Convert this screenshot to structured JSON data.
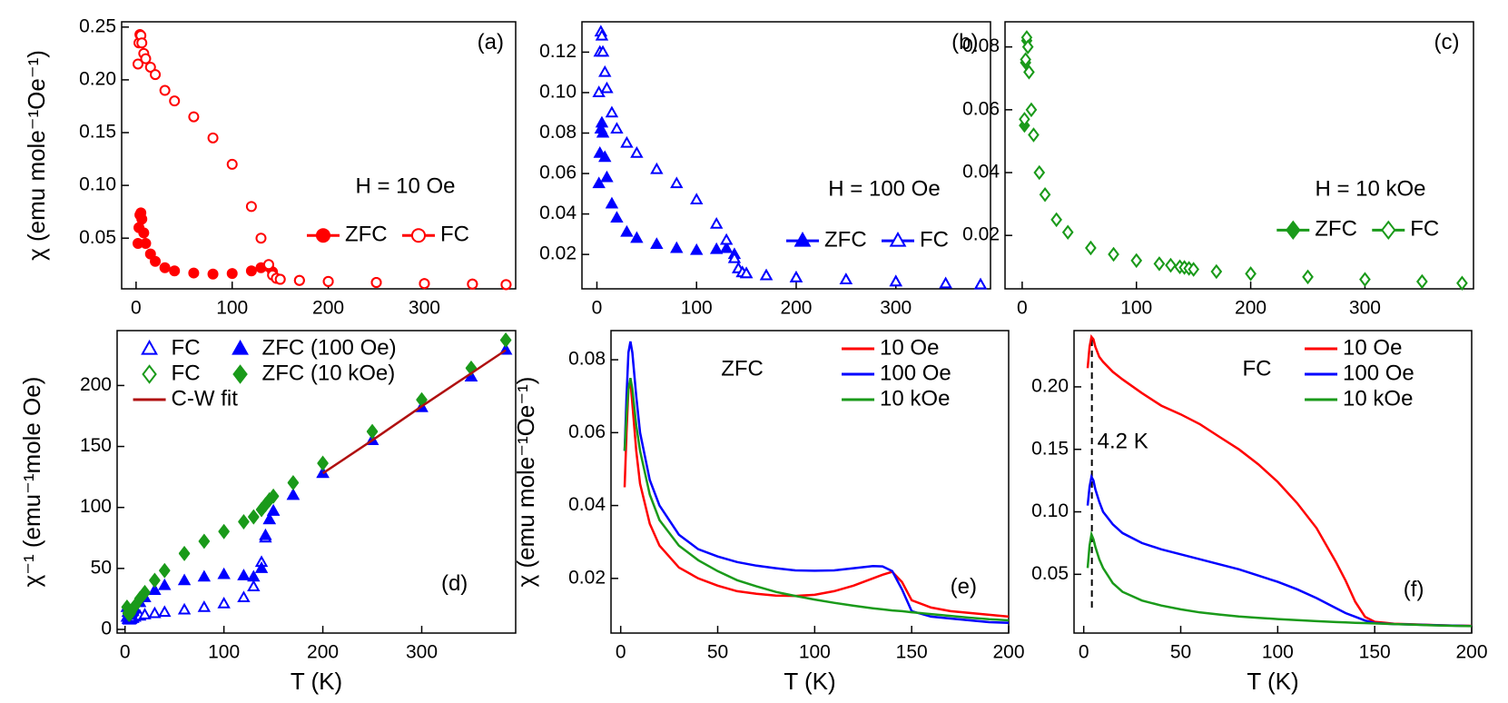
{
  "chart_data": [
    {
      "type": "scatter",
      "panel_label": "(a)",
      "annotation": "H = 10 Oe",
      "ylabel": "χ (emu mole⁻¹Oe⁻¹)",
      "legend": "lower-right",
      "legend_ncol": 2,
      "x": [
        2,
        3,
        4,
        5,
        6,
        8,
        10,
        15,
        20,
        30,
        40,
        60,
        80,
        100,
        120,
        130,
        138,
        142,
        146,
        150,
        170,
        200,
        250,
        300,
        350,
        385
      ],
      "xlim": [
        -15,
        395
      ],
      "xticks": [
        0,
        100,
        200,
        300
      ],
      "ylim": [
        0.002,
        0.255
      ],
      "yticks": [
        0.05,
        {
          "value": 0.1,
          "label": "0.10"
        },
        0.15,
        {
          "value": 0.2,
          "label": "0.20"
        },
        0.25
      ],
      "series": [
        {
          "name": "ZFC",
          "color": "#ff0000",
          "marker": "circle",
          "filled": true,
          "values": [
            0.045,
            0.06,
            0.072,
            0.074,
            0.068,
            0.055,
            0.045,
            0.035,
            0.028,
            0.022,
            0.019,
            0.017,
            0.016,
            0.0165,
            0.019,
            0.022,
            0.023,
            0.018,
            0.012,
            0.011,
            0.01,
            0.009,
            0.008,
            0.007,
            0.0065,
            0.006
          ]
        },
        {
          "name": "FC",
          "color": "#ff0000",
          "marker": "circle",
          "filled": false,
          "values": [
            0.215,
            0.235,
            0.243,
            0.242,
            0.235,
            0.225,
            0.22,
            0.212,
            0.205,
            0.19,
            0.18,
            0.165,
            0.145,
            0.12,
            0.08,
            0.05,
            0.025,
            0.015,
            0.012,
            0.011,
            0.01,
            0.009,
            0.008,
            0.007,
            0.0065,
            0.006
          ]
        }
      ]
    },
    {
      "type": "scatter",
      "panel_label": "(b)",
      "annotation": "H = 100 Oe",
      "legend": "lower-right",
      "legend_ncol": 2,
      "x": [
        2,
        3,
        4,
        5,
        6,
        8,
        10,
        15,
        20,
        30,
        40,
        60,
        80,
        100,
        120,
        130,
        138,
        142,
        146,
        150,
        170,
        200,
        250,
        300,
        350,
        385
      ],
      "xlim": [
        -15,
        395
      ],
      "xticks": [
        0,
        100,
        200,
        300
      ],
      "ylim": [
        0.003,
        0.135
      ],
      "yticks": [
        0.02,
        0.04,
        0.06,
        0.08,
        {
          "value": 0.1,
          "label": "0.10"
        },
        0.12
      ],
      "series": [
        {
          "name": "ZFC",
          "color": "#0000ff",
          "marker": "triangle",
          "filled": true,
          "values": [
            0.055,
            0.07,
            0.082,
            0.085,
            0.08,
            0.068,
            0.058,
            0.045,
            0.038,
            0.031,
            0.028,
            0.025,
            0.023,
            0.022,
            0.0225,
            0.023,
            0.02,
            0.013,
            0.011,
            0.0105,
            0.0095,
            0.0085,
            0.0075,
            0.0065,
            0.0055,
            0.005
          ]
        },
        {
          "name": "FC",
          "color": "#0000ff",
          "marker": "triangle",
          "filled": false,
          "values": [
            0.1,
            0.12,
            0.13,
            0.128,
            0.12,
            0.11,
            0.102,
            0.09,
            0.082,
            0.075,
            0.07,
            0.062,
            0.055,
            0.047,
            0.035,
            0.027,
            0.018,
            0.013,
            0.011,
            0.0105,
            0.0095,
            0.0085,
            0.0075,
            0.0065,
            0.0055,
            0.005
          ]
        }
      ]
    },
    {
      "type": "scatter",
      "panel_label": "(c)",
      "annotation": "H = 10 kOe",
      "legend": "lower-right",
      "legend_ncol": 2,
      "x": [
        2,
        3,
        4,
        5,
        6,
        8,
        10,
        15,
        20,
        30,
        40,
        60,
        80,
        100,
        120,
        130,
        138,
        142,
        146,
        150,
        170,
        200,
        250,
        300,
        350,
        385
      ],
      "xlim": [
        -15,
        395
      ],
      "xticks": [
        0,
        100,
        200,
        300
      ],
      "ylim": [
        0.003,
        0.088
      ],
      "yticks": [
        0.02,
        0.04,
        0.06,
        0.08
      ],
      "series": [
        {
          "name": "ZFC",
          "color": "#1a9a1a",
          "marker": "diamond",
          "filled": true,
          "values": [
            0.055,
            0.075,
            0.082,
            0.08,
            0.072,
            0.06,
            0.052,
            0.04,
            0.033,
            0.025,
            0.021,
            0.016,
            0.014,
            0.012,
            0.011,
            0.0105,
            0.01,
            0.0098,
            0.0095,
            0.0092,
            0.0085,
            0.0078,
            0.0068,
            0.006,
            0.0053,
            0.0048
          ]
        },
        {
          "name": "FC",
          "color": "#1a9a1a",
          "marker": "diamond",
          "filled": false,
          "values": [
            0.057,
            0.076,
            0.083,
            0.08,
            0.072,
            0.06,
            0.052,
            0.04,
            0.033,
            0.025,
            0.021,
            0.016,
            0.014,
            0.012,
            0.011,
            0.0105,
            0.01,
            0.0098,
            0.0095,
            0.0092,
            0.0085,
            0.0078,
            0.0068,
            0.006,
            0.0053,
            0.0048
          ]
        }
      ]
    },
    {
      "type": "scatter",
      "panel_label": "(d)",
      "xlabel": "T (K)",
      "ylabel": "χ⁻¹ (emu⁻¹mole Oe)",
      "legend": "upper-left",
      "legend_ncol": 2,
      "x": [
        2,
        3,
        4,
        5,
        6,
        8,
        10,
        15,
        20,
        30,
        40,
        60,
        80,
        100,
        120,
        130,
        138,
        142,
        146,
        150,
        170,
        200,
        250,
        300,
        350,
        385
      ],
      "xlim": [
        -8,
        395
      ],
      "xticks": [
        0,
        100,
        200,
        300
      ],
      "ylim": [
        -3,
        245
      ],
      "yticks": [
        0,
        50,
        100,
        150,
        200
      ],
      "series": [
        {
          "name": "FC",
          "color": "#0000ff",
          "marker": "triangle",
          "filled": false,
          "values": [
            10,
            8.3,
            7.7,
            7.8,
            8.3,
            9,
            10,
            11,
            12,
            13,
            14,
            16,
            18,
            21,
            26,
            35,
            55,
            75,
            90,
            97,
            110,
            128,
            155,
            182,
            207,
            229
          ]
        },
        {
          "name": "ZFC (100 Oe)",
          "color": "#0000ff",
          "marker": "triangle",
          "filled": true,
          "values": [
            18,
            14,
            12,
            11.8,
            12.5,
            14.7,
            17,
            22,
            26,
            32,
            36,
            40,
            43,
            45,
            44,
            43,
            50,
            77,
            90,
            97,
            110,
            128,
            155,
            182,
            207,
            229
          ]
        },
        {
          "name": "FC",
          "color": "#1a9a1a",
          "marker": "diamond",
          "filled": false,
          "values": [
            18,
            13,
            12,
            12.5,
            14,
            17,
            19,
            25,
            30,
            40,
            48,
            62,
            72,
            80,
            88,
            92,
            98,
            102,
            106,
            109,
            120,
            136,
            162,
            188,
            214,
            237
          ]
        },
        {
          "name": "ZFC (10 kOe)",
          "color": "#1a9a1a",
          "marker": "diamond",
          "filled": true,
          "values": [
            18.5,
            13.5,
            12.3,
            12.7,
            14.2,
            17.2,
            19.3,
            25.5,
            30.5,
            40.5,
            48.5,
            62.5,
            72.5,
            80.5,
            88.5,
            92.5,
            98.5,
            102.5,
            106.5,
            109.5,
            120.5,
            136.5,
            162.5,
            188.5,
            214.5,
            237.5
          ]
        },
        {
          "name": "C-W fit",
          "color": "#b01010",
          "marker": "line",
          "filled": false,
          "values": [
            null,
            null,
            null,
            null,
            null,
            null,
            null,
            null,
            null,
            null,
            null,
            null,
            null,
            null,
            null,
            null,
            null,
            null,
            null,
            null,
            null,
            128,
            155,
            183,
            210,
            229
          ]
        }
      ]
    },
    {
      "type": "line",
      "panel_label": "(e)",
      "annotation": "ZFC",
      "xlabel": "T (K)",
      "ylabel": "χ (emu mole⁻¹Oe⁻¹)",
      "legend": "upper-right",
      "legend_ncol": 1,
      "x": [
        2,
        3,
        4,
        5,
        6,
        8,
        10,
        15,
        20,
        30,
        40,
        50,
        60,
        70,
        80,
        90,
        100,
        110,
        120,
        130,
        135,
        140,
        145,
        150,
        160,
        170,
        180,
        190,
        200
      ],
      "xlim": [
        -5,
        200
      ],
      "xticks": [
        0,
        50,
        100,
        150,
        200
      ],
      "ylim": [
        0.005,
        0.088
      ],
      "yticks": [
        0.02,
        0.04,
        0.06,
        0.08
      ],
      "series": [
        {
          "name": "10 Oe",
          "color": "#ff0000",
          "values": [
            0.045,
            0.06,
            0.072,
            0.074,
            0.068,
            0.055,
            0.046,
            0.035,
            0.029,
            0.023,
            0.02,
            0.018,
            0.0165,
            0.0158,
            0.0153,
            0.0152,
            0.0155,
            0.0165,
            0.018,
            0.02,
            0.021,
            0.0218,
            0.019,
            0.014,
            0.012,
            0.011,
            0.0105,
            0.01,
            0.0095
          ]
        },
        {
          "name": "100 Oe",
          "color": "#0000ff",
          "values": [
            0.055,
            0.07,
            0.082,
            0.085,
            0.082,
            0.07,
            0.06,
            0.047,
            0.04,
            0.032,
            0.028,
            0.026,
            0.0245,
            0.0235,
            0.0228,
            0.0222,
            0.0221,
            0.0222,
            0.0228,
            0.0234,
            0.0233,
            0.022,
            0.017,
            0.011,
            0.0095,
            0.009,
            0.0085,
            0.008,
            0.0078
          ]
        },
        {
          "name": "10 kOe",
          "color": "#1a9a1a",
          "values": [
            0.055,
            0.065,
            0.072,
            0.075,
            0.072,
            0.062,
            0.055,
            0.043,
            0.036,
            0.029,
            0.025,
            0.022,
            0.0195,
            0.0178,
            0.0163,
            0.0152,
            0.0142,
            0.0133,
            0.0125,
            0.0118,
            0.0115,
            0.0112,
            0.011,
            0.0107,
            0.0102,
            0.0097,
            0.0092,
            0.0088,
            0.0085
          ]
        }
      ]
    },
    {
      "type": "line",
      "panel_label": "(f)",
      "annotation": "FC",
      "xlabel": "T (K)",
      "legend": "upper-right",
      "legend_ncol": 1,
      "vline": {
        "value": 4.2,
        "label": "4.2 K"
      },
      "x": [
        2,
        3,
        4,
        5,
        6,
        8,
        10,
        15,
        20,
        30,
        40,
        50,
        60,
        70,
        80,
        90,
        100,
        110,
        120,
        130,
        135,
        140,
        145,
        150,
        160,
        170,
        180,
        190,
        200
      ],
      "xlim": [
        -5,
        200
      ],
      "xticks": [
        0,
        50,
        100,
        150,
        200
      ],
      "ylim": [
        0.003,
        0.245
      ],
      "yticks": [
        0.05,
        {
          "value": 0.1,
          "label": "0.10"
        },
        0.15,
        {
          "value": 0.2,
          "label": "0.20"
        }
      ],
      "series": [
        {
          "name": "10 Oe",
          "color": "#ff0000",
          "values": [
            0.215,
            0.232,
            0.24,
            0.238,
            0.232,
            0.224,
            0.22,
            0.212,
            0.206,
            0.195,
            0.185,
            0.178,
            0.17,
            0.16,
            0.15,
            0.138,
            0.124,
            0.107,
            0.087,
            0.06,
            0.045,
            0.028,
            0.016,
            0.012,
            0.0105,
            0.01,
            0.0095,
            0.009,
            0.0088
          ]
        },
        {
          "name": "100 Oe",
          "color": "#0000ff",
          "values": [
            0.105,
            0.12,
            0.128,
            0.125,
            0.118,
            0.108,
            0.1,
            0.09,
            0.083,
            0.075,
            0.07,
            0.066,
            0.062,
            0.058,
            0.054,
            0.049,
            0.044,
            0.038,
            0.031,
            0.023,
            0.019,
            0.016,
            0.013,
            0.011,
            0.0102,
            0.0098,
            0.0093,
            0.009,
            0.0086
          ]
        },
        {
          "name": "10 kOe",
          "color": "#1a9a1a",
          "values": [
            0.055,
            0.073,
            0.082,
            0.078,
            0.072,
            0.062,
            0.055,
            0.043,
            0.036,
            0.029,
            0.025,
            0.022,
            0.0195,
            0.0178,
            0.0163,
            0.0152,
            0.0142,
            0.0133,
            0.0125,
            0.0118,
            0.0115,
            0.0112,
            0.011,
            0.0107,
            0.0102,
            0.0097,
            0.0092,
            0.0088,
            0.0085
          ]
        }
      ]
    }
  ]
}
